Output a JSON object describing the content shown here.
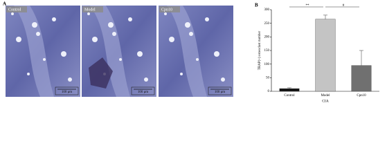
{
  "panel_a": {
    "label": "A",
    "images": [
      {
        "label": "Control",
        "scale_bar": "100 μm"
      },
      {
        "label": "Model",
        "scale_bar": "100 μm"
      },
      {
        "label": "Cpn10",
        "scale_bar": "100 μm"
      }
    ]
  },
  "chart_data": {
    "type": "bar",
    "panel_label": "B",
    "y_label": "TRAP(+) osteoclast number",
    "x_label": "CIA",
    "categories": [
      "Control",
      "Model",
      "Cpn10"
    ],
    "values": [
      10,
      265,
      95
    ],
    "errors": [
      3,
      15,
      55
    ],
    "colors": [
      "#111111",
      "#c4c4c4",
      "#707070"
    ],
    "ylim": [
      0,
      300
    ],
    "yticks": [
      0,
      50,
      100,
      150,
      200,
      250,
      300
    ],
    "significance": [
      {
        "from": 0,
        "to": 1,
        "label": "**"
      },
      {
        "from": 1,
        "to": 2,
        "label": "#"
      }
    ]
  }
}
